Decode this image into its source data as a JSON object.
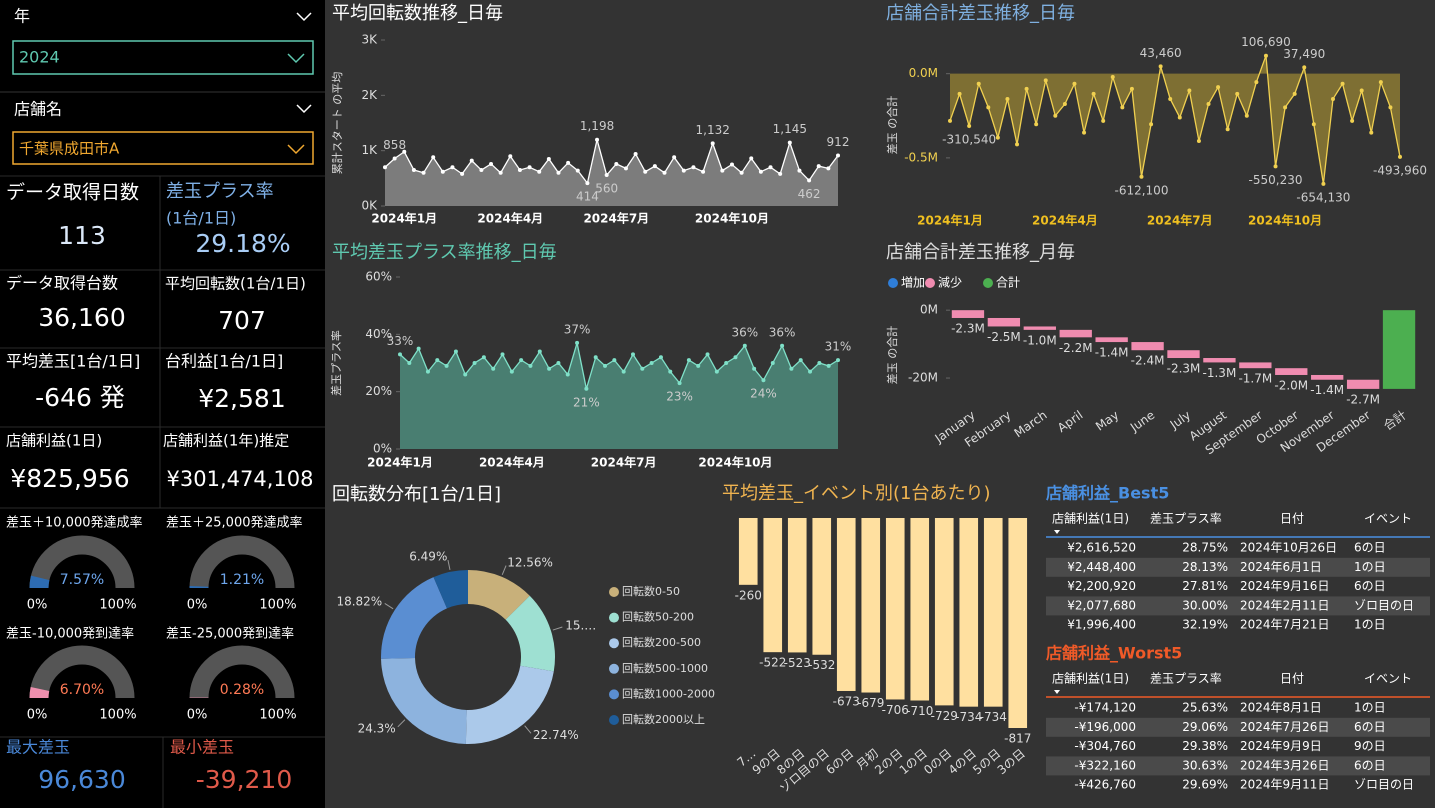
{
  "slicers": [
    {
      "label": "年",
      "value": "2024"
    },
    {
      "label": "店舗名",
      "value": "千葉県成田市A"
    }
  ],
  "cards": [
    {
      "title": "データ取得日数",
      "value": "113"
    },
    {
      "title": "差玉プラス率",
      "subtitle": "(1台/1日)",
      "value": "29.18%"
    },
    {
      "title": "データ取得台数",
      "value": "36,160"
    },
    {
      "title": "平均回転数(1台/1日)",
      "value": "707"
    },
    {
      "title": "平均差玉[1台/1日]",
      "value": "-646 発"
    },
    {
      "title": "台利益[1台/1日]",
      "value": "¥2,581"
    },
    {
      "title": "店舗利益(1日)",
      "value": "¥825,956"
    },
    {
      "title": "店舗利益(1年)推定",
      "value": "¥301,474,108"
    },
    {
      "title": "最大差玉",
      "value": "96,630"
    },
    {
      "title": "最小差玉",
      "value": "-39,210"
    }
  ],
  "gauges": [
    {
      "title": "差玉＋10,000発達成率",
      "value": 7.57,
      "value_label": "7.57%",
      "min": {
        "value": 0,
        "label": "0%"
      },
      "max": {
        "value": 100,
        "label": "100%"
      },
      "color": "#2d6cb3",
      "label_color": "#6ea6ec"
    },
    {
      "title": "差玉＋25,000発達成率",
      "value": 1.21,
      "value_label": "1.21%",
      "min": {
        "value": 0,
        "label": "0%"
      },
      "max": {
        "value": 100,
        "label": "100%"
      },
      "color": "#2d6cb3",
      "label_color": "#6ea6ec"
    },
    {
      "title": "差玉-10,000発到達率",
      "value": 6.7,
      "value_label": "6.70%",
      "min": {
        "value": 0,
        "label": "0%"
      },
      "max": {
        "value": 100,
        "label": "100%"
      },
      "color": "#ee8fae",
      "label_color": "#ff7a55"
    },
    {
      "title": "差玉-25,000発到達率",
      "value": 0.28,
      "value_label": "0.28%",
      "min": {
        "value": 0,
        "label": "0%"
      },
      "max": {
        "value": 100,
        "label": "100%"
      },
      "color": "#ee8fae",
      "label_color": "#ff7a55"
    }
  ],
  "chart_data": [
    {
      "type": "line",
      "title": "平均回転数推移_日毎",
      "y_label": "累計スタート の平均",
      "categories": [
        null,
        null,
        "2024年1月",
        null,
        null,
        null,
        null,
        null,
        null,
        null,
        null,
        null,
        null,
        "2024年4月",
        null,
        null,
        null,
        null,
        null,
        null,
        null,
        null,
        null,
        null,
        "2024年7月",
        null,
        null,
        null,
        null,
        null,
        null,
        null,
        null,
        null,
        null,
        null,
        "2024年10月",
        null,
        null,
        null,
        null,
        null,
        null,
        null,
        null,
        null,
        null,
        null
      ],
      "values": [
        700,
        858,
        980,
        650,
        600,
        880,
        620,
        700,
        580,
        820,
        650,
        760,
        600,
        900,
        650,
        700,
        620,
        850,
        600,
        780,
        640,
        414,
        1198,
        560,
        760,
        680,
        940,
        620,
        720,
        600,
        880,
        640,
        700,
        620,
        1132,
        640,
        750,
        600,
        860,
        620,
        700,
        580,
        1145,
        640,
        462,
        720,
        680,
        912
      ],
      "value_labels": [
        null,
        "858",
        null,
        null,
        null,
        null,
        null,
        null,
        null,
        null,
        null,
        null,
        null,
        null,
        null,
        null,
        null,
        null,
        null,
        null,
        null,
        "414",
        "1,198",
        "560",
        null,
        null,
        null,
        null,
        null,
        null,
        null,
        null,
        null,
        null,
        "1,132",
        null,
        null,
        null,
        null,
        null,
        null,
        null,
        "1,145",
        null,
        "462",
        null,
        null,
        "912"
      ],
      "color": "#ffffff",
      "area_color": "#8a8a8a",
      "ylim": [
        0,
        3000
      ],
      "yticks": [
        {
          "value": 0,
          "label": "0K"
        },
        {
          "value": 1000,
          "label": "1K"
        },
        {
          "value": 2000,
          "label": "2K"
        },
        {
          "value": 3000,
          "label": "3K"
        }
      ]
    },
    {
      "type": "line",
      "title": "平均差玉プラス率推移_日毎",
      "y_label": "差玉プラス率",
      "categories": [
        "2024年1月",
        null,
        null,
        null,
        null,
        null,
        null,
        null,
        null,
        null,
        null,
        null,
        "2024年4月",
        null,
        null,
        null,
        null,
        null,
        null,
        null,
        null,
        null,
        null,
        null,
        "2024年7月",
        null,
        null,
        null,
        null,
        null,
        null,
        null,
        null,
        null,
        null,
        null,
        "2024年10月",
        null,
        null,
        null,
        null,
        null,
        null,
        null,
        null,
        null,
        null,
        null
      ],
      "values": [
        33,
        30,
        35,
        27,
        31,
        29,
        34,
        26,
        30,
        32,
        28,
        33,
        27,
        31,
        29,
        34,
        28,
        30,
        26,
        37,
        21,
        32,
        29,
        31,
        27,
        33,
        28,
        30,
        32,
        27,
        23,
        31,
        29,
        33,
        27,
        30,
        32,
        36,
        28,
        24,
        30,
        36,
        28,
        31,
        27,
        30,
        29,
        31
      ],
      "value_labels": [
        "33%",
        null,
        null,
        null,
        null,
        null,
        null,
        null,
        null,
        null,
        null,
        null,
        null,
        null,
        null,
        null,
        null,
        null,
        null,
        "37%",
        "21%",
        null,
        null,
        null,
        null,
        null,
        null,
        null,
        null,
        null,
        "23%",
        null,
        null,
        null,
        null,
        null,
        null,
        "36%",
        null,
        "24%",
        null,
        "36%",
        null,
        null,
        null,
        null,
        null,
        "31%"
      ],
      "color": "#7fe0c8",
      "area_color": "#4d8c7c",
      "ylim": [
        0,
        60
      ],
      "yticks": [
        {
          "value": 0,
          "label": "0%"
        },
        {
          "value": 20,
          "label": "20%"
        },
        {
          "value": 40,
          "label": "40%"
        },
        {
          "value": 60,
          "label": "60%"
        }
      ]
    },
    {
      "type": "line",
      "title": "店舗合計差玉推移_日毎",
      "y_label": "差玉 の合計",
      "categories": [
        "2024年1月",
        null,
        null,
        null,
        null,
        null,
        null,
        null,
        null,
        null,
        null,
        null,
        "2024年4月",
        null,
        null,
        null,
        null,
        null,
        null,
        null,
        null,
        null,
        null,
        null,
        "2024年7月",
        null,
        null,
        null,
        null,
        null,
        null,
        null,
        null,
        null,
        null,
        "2024年10月",
        null,
        null,
        null,
        null,
        null,
        null,
        null,
        null,
        null,
        null,
        null,
        null
      ],
      "values": [
        -280000,
        -120000,
        -310540,
        -60000,
        -200000,
        -380000,
        -150000,
        -420000,
        -90000,
        -300000,
        -40000,
        -250000,
        -180000,
        -60000,
        -350000,
        -120000,
        -280000,
        -20000,
        -200000,
        -90000,
        -612100,
        -300000,
        43460,
        -150000,
        -260000,
        -100000,
        -400000,
        -180000,
        -80000,
        -330000,
        -120000,
        -250000,
        -50000,
        106690,
        -550230,
        -200000,
        -120000,
        37490,
        -300000,
        -654130,
        -150000,
        -60000,
        -280000,
        -100000,
        -350000,
        -50000,
        -200000,
        -493960
      ],
      "value_labels": [
        null,
        null,
        "-310,540",
        null,
        null,
        null,
        null,
        null,
        null,
        null,
        null,
        null,
        null,
        null,
        null,
        null,
        null,
        null,
        null,
        null,
        "-612,100",
        null,
        "43,460",
        null,
        null,
        null,
        null,
        null,
        null,
        null,
        null,
        null,
        null,
        "106,690",
        "-550,230",
        null,
        null,
        "37,490",
        null,
        "-654,130",
        null,
        null,
        null,
        null,
        null,
        null,
        null,
        "-493,960"
      ],
      "color": "#f0d050",
      "area_color": "#8c7a34",
      "ylim": [
        -750000,
        200000
      ],
      "yticks": [
        {
          "value": 0,
          "label": "0.0M"
        },
        {
          "value": -500000,
          "label": "-0.5M"
        }
      ]
    },
    {
      "type": "waterfall",
      "title": "店舗合計差玉推移_月毎",
      "y_label": "差玉 の合計",
      "categories": [
        "January",
        "February",
        "March",
        "April",
        "May",
        "June",
        "July",
        "August",
        "September",
        "October",
        "November",
        "December",
        "合計"
      ],
      "values": [
        -2300000,
        -2500000,
        -1000000,
        -2200000,
        -1400000,
        -2400000,
        -2300000,
        -1300000,
        -1700000,
        -2000000,
        -1400000,
        -2700000,
        -23200000
      ],
      "value_labels": [
        "-2.3M",
        "-2.5M",
        "-1.0M",
        "-2.2M",
        "-1.4M",
        "-2.4M",
        "-2.3M",
        "-1.3M",
        "-1.7M",
        "-2.0M",
        "-1.4M",
        "-2.7M",
        null
      ],
      "legend": [
        {
          "name": "増加",
          "color": "#2f7ed8"
        },
        {
          "name": "減少",
          "color": "#f08cb0"
        },
        {
          "name": "合計",
          "color": "#4caf50"
        }
      ],
      "ylim": [
        -25000000,
        3000000
      ],
      "yticks": [
        {
          "value": 0,
          "label": "0M"
        },
        {
          "value": -20000000,
          "label": "-20M"
        }
      ]
    },
    {
      "type": "pie",
      "title": "回転数分布[1台/1日]",
      "donut": true,
      "categories": [
        "回転数0-50",
        "回転数50-200",
        "回転数200-500",
        "回転数500-1000",
        "回転数1000-2000",
        "回転数2000以上"
      ],
      "values": [
        12.56,
        15.09,
        22.74,
        24.3,
        18.82,
        6.49
      ],
      "value_labels": [
        "12.56%",
        "15.…",
        "22.74%",
        "24.3%",
        "18.82%",
        "6.49%"
      ],
      "colors": [
        "#c8b07a",
        "#9ee0d2",
        "#abc9ea",
        "#8db3de",
        "#5a8ed2",
        "#1f5d9a"
      ]
    },
    {
      "type": "bar",
      "title": "平均差玉_イベント別(1台あたり)",
      "categories": [
        "7…",
        "9の日",
        "8の日",
        "ゾロ目の日",
        "6の日",
        "月初",
        "2の日",
        "1の日",
        "0の日",
        "4の日",
        "5の日",
        "3の日"
      ],
      "values": [
        -260,
        -522,
        -523,
        -532,
        -673,
        -679,
        -706,
        -710,
        -729,
        -734,
        -734,
        -817
      ],
      "color": "#ffe0a0"
    }
  ],
  "tables": [
    {
      "title": "店舗利益_Best5",
      "columns": [
        "店舗利益(1日)",
        "差玉プラス率",
        "日付",
        "イベント"
      ],
      "rows": [
        [
          "¥2,616,520",
          "28.75%",
          "2024年10月26日",
          "6の日"
        ],
        [
          "¥2,448,400",
          "28.13%",
          "2024年6月1日",
          "1の日"
        ],
        [
          "¥2,200,920",
          "27.81%",
          "2024年9月16日",
          "6の日"
        ],
        [
          "¥2,077,680",
          "30.00%",
          "2024年2月11日",
          "ゾロ目の日"
        ],
        [
          "¥1,996,400",
          "32.19%",
          "2024年7月21日",
          "1の日"
        ]
      ]
    },
    {
      "title": "店舗利益_Worst5",
      "columns": [
        "店舗利益(1日)",
        "差玉プラス率",
        "日付",
        "イベント"
      ],
      "rows": [
        [
          "-¥174,120",
          "25.63%",
          "2024年8月1日",
          "1の日"
        ],
        [
          "-¥196,000",
          "29.06%",
          "2024年7月26日",
          "6の日"
        ],
        [
          "-¥304,760",
          "29.38%",
          "2024年9月9日",
          "9の日"
        ],
        [
          "-¥322,160",
          "30.63%",
          "2024年3月26日",
          "6の日"
        ],
        [
          "-¥426,760",
          "29.69%",
          "2024年9月11日",
          "ゾロ目の日"
        ]
      ]
    }
  ]
}
